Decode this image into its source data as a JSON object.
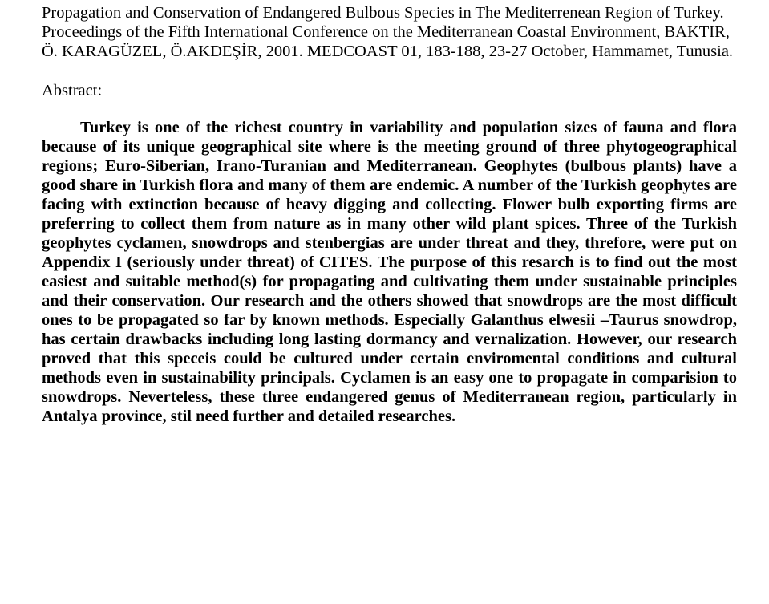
{
  "citation": {
    "line1": "Propagation and Conservation of Endangered Bulbous Species in The Mediterrenean Region of Turkey. Proceedings of the Fifth International Conference on the Mediterranean Coastal Environment, BAKTIR, Ö. KARAGÜZEL, Ö.AKDEŞİR, 2001. MEDCOAST 01, 183-188, 23-27 October, Hammamet, Tunusia."
  },
  "abstract": {
    "heading": "Abstract:",
    "body": "Turkey is one of the richest country in variability and population sizes of fauna and flora because of its unique geographical site where is the meeting ground of three phytogeographical regions; Euro-Siberian, Irano-Turanian and Mediterranean. Geophytes (bulbous plants) have a good share in Turkish flora and many of them are endemic. A number of the Turkish geophytes are facing with extinction because of heavy digging and collecting. Flower bulb exporting firms are preferring to collect them from nature as in many other wild plant spices. Three of the Turkish geophytes cyclamen, snowdrops and stenbergias are under threat and they, threfore, were put on Appendix I (seriously under threat) of CITES. The purpose of this resarch is to find out the most easiest and suitable method(s) for propagating and cultivating them under sustainable principles and their conservation. Our research and the others showed that snowdrops are the most difficult ones to be propagated so far by known methods. Especially Galanthus elwesii –Taurus snowdrop, has certain drawbacks including long lasting dormancy and vernalization. However, our research proved that this speceis could be cultured under certain enviromental conditions and cultural methods even in sustainability principals. Cyclamen is an easy one to propagate in comparision to snowdrops. Neverteless, these three endangered genus of Mediterranean region, particularly in Antalya province, stil need further and detailed researches."
  }
}
